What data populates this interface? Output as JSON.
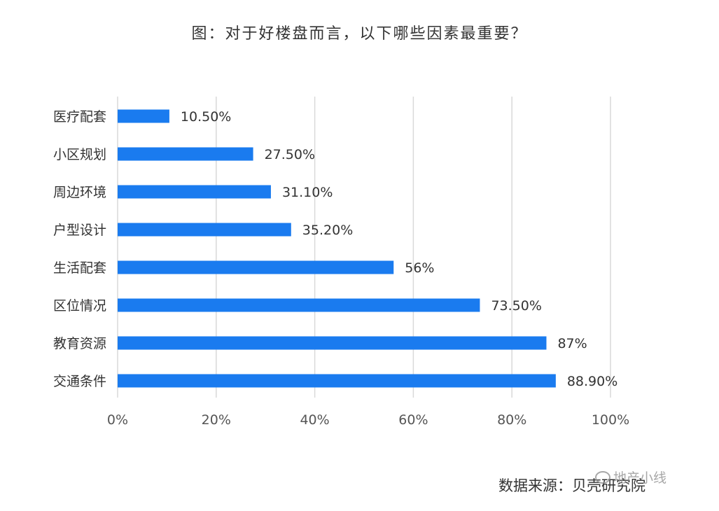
{
  "chart_data": {
    "type": "bar",
    "orientation": "horizontal",
    "title": "图：对于好楼盘而言，以下哪些因素最重要？",
    "categories": [
      "医疗配套",
      "小区规划",
      "周边环境",
      "户型设计",
      "生活配套",
      "区位情况",
      "教育资源",
      "交通条件"
    ],
    "values": [
      10.5,
      27.5,
      31.1,
      35.2,
      56,
      73.5,
      87,
      88.9
    ],
    "value_labels": [
      "10.50%",
      "27.50%",
      "31.10%",
      "35.20%",
      "56%",
      "73.50%",
      "87%",
      "88.90%"
    ],
    "xlim": [
      0,
      100
    ],
    "xticks": [
      0,
      20,
      40,
      60,
      80,
      100
    ],
    "xtick_labels": [
      "0%",
      "20%",
      "40%",
      "60%",
      "80%",
      "100%"
    ],
    "grid": "vertical",
    "bar_color": "#1a7bef",
    "grid_color": "#d9d9d9"
  },
  "source": "数据来源：贝壳研究院",
  "watermark": "地产小线"
}
